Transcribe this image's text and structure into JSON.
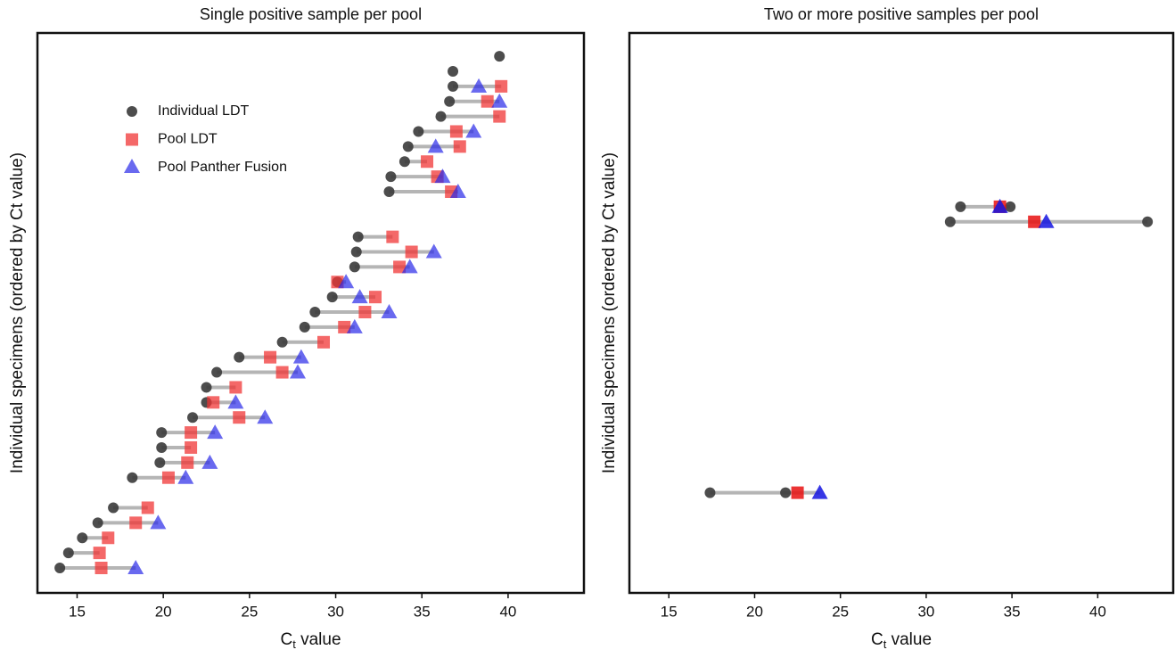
{
  "chart_data": [
    {
      "type": "dumbbell",
      "title": "Single positive sample per pool",
      "xlabel": {
        "main": "C",
        "sub": "t",
        "rest": " value"
      },
      "ylabel": "Individual specimens (ordered by Ct value)",
      "xlim": [
        12.7,
        44.4
      ],
      "xticks": [
        15,
        20,
        25,
        30,
        35,
        40
      ],
      "grid": false,
      "legend": "upper left",
      "series": [
        {
          "name": "Individual LDT",
          "marker": "circle",
          "color": "#3a3a3a",
          "values": [
            14.0,
            14.5,
            15.3,
            16.2,
            17.1,
            null,
            18.2,
            19.8,
            19.9,
            19.9,
            21.7,
            22.5,
            22.5,
            23.1,
            24.4,
            26.9,
            28.2,
            28.8,
            29.8,
            30.1,
            31.1,
            31.2,
            31.3,
            null,
            null,
            33.1,
            33.2,
            34.0,
            34.2,
            34.8,
            36.1,
            36.6,
            36.8,
            36.8,
            39.5
          ]
        },
        {
          "name": "Pool LDT",
          "marker": "square",
          "color": "#f03535",
          "values": [
            16.4,
            16.3,
            16.8,
            18.4,
            19.1,
            null,
            20.3,
            21.4,
            21.6,
            21.6,
            24.4,
            22.9,
            24.2,
            26.9,
            26.2,
            29.3,
            30.5,
            31.7,
            32.3,
            30.1,
            33.7,
            34.4,
            33.3,
            null,
            null,
            36.7,
            35.9,
            35.3,
            37.2,
            37.0,
            39.5,
            38.8,
            39.6,
            null,
            null
          ]
        },
        {
          "name": "Pool Panther Fusion",
          "marker": "triangle",
          "color": "#2a2ae8",
          "values": [
            18.4,
            null,
            null,
            19.7,
            null,
            null,
            21.3,
            22.7,
            null,
            23.0,
            25.9,
            24.2,
            null,
            27.8,
            28.0,
            null,
            31.1,
            33.1,
            31.4,
            30.6,
            34.3,
            35.7,
            null,
            null,
            null,
            37.1,
            36.2,
            null,
            35.8,
            38.0,
            null,
            39.5,
            38.3,
            null,
            null
          ]
        }
      ]
    },
    {
      "type": "dumbbell",
      "title": "Two or more positive samples per pool",
      "xlabel": {
        "main": "C",
        "sub": "t",
        "rest": " value"
      },
      "ylabel": "Individual specimens (ordered by Ct value)",
      "xlim": [
        12.7,
        44.4
      ],
      "xticks": [
        15,
        20,
        25,
        30,
        35,
        40
      ],
      "grid": false,
      "series": [
        {
          "marker": "circle",
          "color": "#3a3a3a",
          "values": [
            null,
            null,
            null,
            null,
            null,
            [
              17.4,
              21.8
            ],
            null,
            null,
            null,
            null,
            null,
            null,
            null,
            null,
            null,
            null,
            null,
            null,
            null,
            null,
            null,
            null,
            null,
            [
              31.4,
              42.9
            ],
            [
              32.0,
              34.9
            ],
            null,
            null,
            null,
            null,
            null,
            null,
            null,
            null,
            null,
            null
          ]
        },
        {
          "marker": "square",
          "color": "#e81010",
          "values": [
            null,
            null,
            null,
            null,
            null,
            22.5,
            null,
            null,
            null,
            null,
            null,
            null,
            null,
            null,
            null,
            null,
            null,
            null,
            null,
            null,
            null,
            null,
            null,
            36.3,
            34.3,
            null,
            null,
            null,
            null,
            null,
            null,
            null,
            null,
            null,
            null
          ]
        },
        {
          "marker": "triangle",
          "color": "#1414e0",
          "values": [
            null,
            null,
            null,
            null,
            null,
            23.8,
            null,
            null,
            null,
            null,
            null,
            null,
            null,
            null,
            null,
            null,
            null,
            null,
            null,
            null,
            null,
            null,
            null,
            37.0,
            34.3,
            null,
            null,
            null,
            null,
            null,
            null,
            null,
            null,
            null,
            null
          ]
        }
      ]
    }
  ]
}
